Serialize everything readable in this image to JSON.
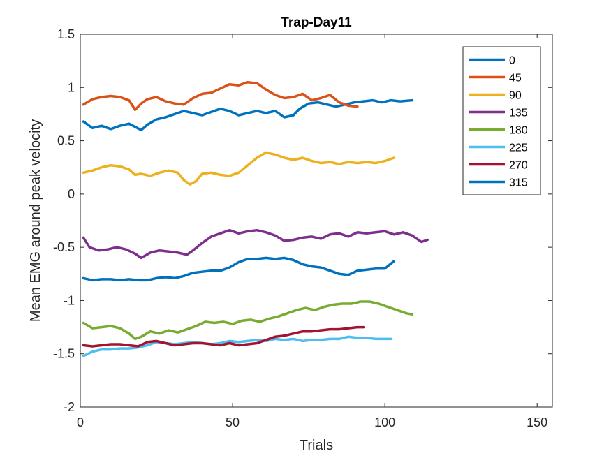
{
  "chart_data": {
    "type": "line",
    "title": "Trap-Day11",
    "xlabel": "Trials",
    "ylabel": "Mean EMG around peak velocity",
    "xlim": [
      0,
      155
    ],
    "ylim": [
      -2,
      1.5
    ],
    "xticks": [
      0,
      50,
      100,
      150
    ],
    "yticks": [
      -2,
      -1.5,
      -1,
      -0.5,
      0,
      0.5,
      1,
      1.5
    ],
    "xtick_labels": [
      "0",
      "50",
      "100",
      "150"
    ],
    "ytick_labels": [
      "-2",
      "-1.5",
      "-1",
      "-0.5",
      "0",
      "0.5",
      "1",
      "1.5"
    ],
    "grid": false,
    "legend_position": "top-right",
    "series": [
      {
        "name": "0",
        "color": "#0072BD",
        "points": [
          [
            1,
            0.68
          ],
          [
            4,
            0.62
          ],
          [
            7,
            0.64
          ],
          [
            10,
            0.61
          ],
          [
            13,
            0.64
          ],
          [
            16,
            0.66
          ],
          [
            18,
            0.63
          ],
          [
            20,
            0.6
          ],
          [
            22,
            0.65
          ],
          [
            25,
            0.7
          ],
          [
            28,
            0.72
          ],
          [
            31,
            0.75
          ],
          [
            34,
            0.78
          ],
          [
            37,
            0.76
          ],
          [
            40,
            0.74
          ],
          [
            43,
            0.77
          ],
          [
            46,
            0.8
          ],
          [
            49,
            0.78
          ],
          [
            52,
            0.74
          ],
          [
            55,
            0.76
          ],
          [
            58,
            0.78
          ],
          [
            61,
            0.76
          ],
          [
            64,
            0.78
          ],
          [
            67,
            0.72
          ],
          [
            70,
            0.74
          ],
          [
            72,
            0.8
          ],
          [
            75,
            0.85
          ],
          [
            78,
            0.86
          ],
          [
            81,
            0.84
          ],
          [
            84,
            0.82
          ],
          [
            87,
            0.84
          ],
          [
            90,
            0.86
          ],
          [
            93,
            0.87
          ],
          [
            96,
            0.88
          ],
          [
            99,
            0.86
          ],
          [
            102,
            0.88
          ],
          [
            105,
            0.87
          ],
          [
            109,
            0.88
          ]
        ]
      },
      {
        "name": "45",
        "color": "#D95319",
        "points": [
          [
            1,
            0.84
          ],
          [
            4,
            0.89
          ],
          [
            7,
            0.91
          ],
          [
            10,
            0.92
          ],
          [
            13,
            0.91
          ],
          [
            16,
            0.88
          ],
          [
            18,
            0.79
          ],
          [
            20,
            0.85
          ],
          [
            22,
            0.89
          ],
          [
            25,
            0.91
          ],
          [
            28,
            0.87
          ],
          [
            31,
            0.85
          ],
          [
            34,
            0.84
          ],
          [
            37,
            0.9
          ],
          [
            40,
            0.94
          ],
          [
            43,
            0.95
          ],
          [
            46,
            0.99
          ],
          [
            49,
            1.03
          ],
          [
            52,
            1.02
          ],
          [
            55,
            1.05
          ],
          [
            58,
            1.04
          ],
          [
            61,
            0.98
          ],
          [
            64,
            0.93
          ],
          [
            67,
            0.9
          ],
          [
            70,
            0.91
          ],
          [
            73,
            0.94
          ],
          [
            76,
            0.88
          ],
          [
            79,
            0.9
          ],
          [
            82,
            0.93
          ],
          [
            85,
            0.86
          ],
          [
            88,
            0.83
          ],
          [
            91,
            0.82
          ]
        ]
      },
      {
        "name": "90",
        "color": "#EDB120",
        "points": [
          [
            1,
            0.2
          ],
          [
            4,
            0.22
          ],
          [
            7,
            0.25
          ],
          [
            10,
            0.27
          ],
          [
            13,
            0.26
          ],
          [
            16,
            0.23
          ],
          [
            18,
            0.18
          ],
          [
            20,
            0.19
          ],
          [
            23,
            0.17
          ],
          [
            26,
            0.2
          ],
          [
            29,
            0.22
          ],
          [
            32,
            0.2
          ],
          [
            34,
            0.13
          ],
          [
            36,
            0.09
          ],
          [
            38,
            0.12
          ],
          [
            40,
            0.19
          ],
          [
            43,
            0.2
          ],
          [
            46,
            0.18
          ],
          [
            49,
            0.17
          ],
          [
            52,
            0.2
          ],
          [
            55,
            0.27
          ],
          [
            58,
            0.34
          ],
          [
            61,
            0.39
          ],
          [
            64,
            0.37
          ],
          [
            67,
            0.34
          ],
          [
            70,
            0.32
          ],
          [
            73,
            0.34
          ],
          [
            76,
            0.31
          ],
          [
            79,
            0.29
          ],
          [
            82,
            0.3
          ],
          [
            85,
            0.28
          ],
          [
            88,
            0.3
          ],
          [
            91,
            0.29
          ],
          [
            94,
            0.3
          ],
          [
            97,
            0.29
          ],
          [
            100,
            0.31
          ],
          [
            103,
            0.34
          ]
        ]
      },
      {
        "name": "135",
        "color": "#7E2F8E",
        "points": [
          [
            1,
            -0.41
          ],
          [
            3,
            -0.5
          ],
          [
            6,
            -0.53
          ],
          [
            9,
            -0.52
          ],
          [
            12,
            -0.5
          ],
          [
            15,
            -0.52
          ],
          [
            18,
            -0.56
          ],
          [
            20,
            -0.6
          ],
          [
            23,
            -0.55
          ],
          [
            26,
            -0.53
          ],
          [
            29,
            -0.54
          ],
          [
            32,
            -0.55
          ],
          [
            35,
            -0.57
          ],
          [
            37,
            -0.53
          ],
          [
            40,
            -0.46
          ],
          [
            43,
            -0.4
          ],
          [
            46,
            -0.37
          ],
          [
            49,
            -0.34
          ],
          [
            52,
            -0.37
          ],
          [
            55,
            -0.35
          ],
          [
            58,
            -0.34
          ],
          [
            61,
            -0.36
          ],
          [
            64,
            -0.39
          ],
          [
            67,
            -0.44
          ],
          [
            70,
            -0.43
          ],
          [
            73,
            -0.41
          ],
          [
            76,
            -0.4
          ],
          [
            79,
            -0.42
          ],
          [
            82,
            -0.38
          ],
          [
            85,
            -0.37
          ],
          [
            88,
            -0.4
          ],
          [
            91,
            -0.36
          ],
          [
            94,
            -0.37
          ],
          [
            97,
            -0.36
          ],
          [
            100,
            -0.35
          ],
          [
            103,
            -0.38
          ],
          [
            106,
            -0.36
          ],
          [
            109,
            -0.39
          ],
          [
            112,
            -0.45
          ],
          [
            114,
            -0.43
          ]
        ]
      },
      {
        "name": "180",
        "color": "#77AC30",
        "points": [
          [
            1,
            -1.21
          ],
          [
            4,
            -1.26
          ],
          [
            7,
            -1.25
          ],
          [
            10,
            -1.24
          ],
          [
            13,
            -1.26
          ],
          [
            16,
            -1.31
          ],
          [
            18,
            -1.36
          ],
          [
            20,
            -1.34
          ],
          [
            23,
            -1.29
          ],
          [
            26,
            -1.31
          ],
          [
            29,
            -1.28
          ],
          [
            32,
            -1.3
          ],
          [
            35,
            -1.27
          ],
          [
            38,
            -1.24
          ],
          [
            41,
            -1.2
          ],
          [
            44,
            -1.21
          ],
          [
            47,
            -1.2
          ],
          [
            50,
            -1.22
          ],
          [
            53,
            -1.19
          ],
          [
            56,
            -1.18
          ],
          [
            59,
            -1.2
          ],
          [
            62,
            -1.17
          ],
          [
            65,
            -1.15
          ],
          [
            68,
            -1.12
          ],
          [
            71,
            -1.09
          ],
          [
            74,
            -1.07
          ],
          [
            77,
            -1.09
          ],
          [
            80,
            -1.06
          ],
          [
            83,
            -1.04
          ],
          [
            86,
            -1.03
          ],
          [
            89,
            -1.03
          ],
          [
            92,
            -1.01
          ],
          [
            95,
            -1.01
          ],
          [
            98,
            -1.03
          ],
          [
            101,
            -1.06
          ],
          [
            104,
            -1.09
          ],
          [
            107,
            -1.12
          ],
          [
            109,
            -1.13
          ]
        ]
      },
      {
        "name": "225",
        "color": "#4DBEEE",
        "points": [
          [
            1,
            -1.52
          ],
          [
            4,
            -1.48
          ],
          [
            7,
            -1.46
          ],
          [
            10,
            -1.46
          ],
          [
            13,
            -1.45
          ],
          [
            16,
            -1.45
          ],
          [
            19,
            -1.44
          ],
          [
            22,
            -1.42
          ],
          [
            25,
            -1.39
          ],
          [
            28,
            -1.4
          ],
          [
            31,
            -1.41
          ],
          [
            34,
            -1.4
          ],
          [
            37,
            -1.39
          ],
          [
            40,
            -1.4
          ],
          [
            43,
            -1.41
          ],
          [
            46,
            -1.4
          ],
          [
            49,
            -1.38
          ],
          [
            52,
            -1.39
          ],
          [
            55,
            -1.38
          ],
          [
            58,
            -1.37
          ],
          [
            61,
            -1.38
          ],
          [
            64,
            -1.36
          ],
          [
            67,
            -1.37
          ],
          [
            70,
            -1.36
          ],
          [
            73,
            -1.38
          ],
          [
            76,
            -1.37
          ],
          [
            79,
            -1.37
          ],
          [
            82,
            -1.36
          ],
          [
            85,
            -1.36
          ],
          [
            88,
            -1.34
          ],
          [
            91,
            -1.35
          ],
          [
            94,
            -1.35
          ],
          [
            97,
            -1.36
          ],
          [
            100,
            -1.36
          ],
          [
            102,
            -1.36
          ]
        ]
      },
      {
        "name": "270",
        "color": "#A2142F",
        "points": [
          [
            1,
            -1.42
          ],
          [
            4,
            -1.43
          ],
          [
            7,
            -1.42
          ],
          [
            10,
            -1.41
          ],
          [
            13,
            -1.41
          ],
          [
            16,
            -1.42
          ],
          [
            19,
            -1.43
          ],
          [
            22,
            -1.39
          ],
          [
            25,
            -1.38
          ],
          [
            28,
            -1.4
          ],
          [
            31,
            -1.42
          ],
          [
            34,
            -1.41
          ],
          [
            37,
            -1.4
          ],
          [
            40,
            -1.4
          ],
          [
            43,
            -1.41
          ],
          [
            46,
            -1.42
          ],
          [
            49,
            -1.4
          ],
          [
            52,
            -1.42
          ],
          [
            55,
            -1.41
          ],
          [
            58,
            -1.4
          ],
          [
            61,
            -1.37
          ],
          [
            64,
            -1.34
          ],
          [
            67,
            -1.33
          ],
          [
            70,
            -1.31
          ],
          [
            73,
            -1.29
          ],
          [
            76,
            -1.29
          ],
          [
            79,
            -1.28
          ],
          [
            82,
            -1.27
          ],
          [
            85,
            -1.27
          ],
          [
            88,
            -1.26
          ],
          [
            91,
            -1.25
          ],
          [
            93,
            -1.25
          ]
        ]
      },
      {
        "name": "315",
        "color": "#0072BD",
        "points": [
          [
            1,
            -0.79
          ],
          [
            4,
            -0.81
          ],
          [
            7,
            -0.8
          ],
          [
            10,
            -0.8
          ],
          [
            13,
            -0.81
          ],
          [
            16,
            -0.8
          ],
          [
            19,
            -0.81
          ],
          [
            22,
            -0.81
          ],
          [
            25,
            -0.79
          ],
          [
            28,
            -0.78
          ],
          [
            31,
            -0.79
          ],
          [
            34,
            -0.77
          ],
          [
            37,
            -0.74
          ],
          [
            40,
            -0.73
          ],
          [
            43,
            -0.72
          ],
          [
            46,
            -0.72
          ],
          [
            49,
            -0.69
          ],
          [
            52,
            -0.64
          ],
          [
            55,
            -0.61
          ],
          [
            58,
            -0.61
          ],
          [
            61,
            -0.6
          ],
          [
            64,
            -0.61
          ],
          [
            67,
            -0.6
          ],
          [
            70,
            -0.62
          ],
          [
            73,
            -0.66
          ],
          [
            76,
            -0.68
          ],
          [
            79,
            -0.69
          ],
          [
            82,
            -0.72
          ],
          [
            85,
            -0.75
          ],
          [
            88,
            -0.76
          ],
          [
            91,
            -0.72
          ],
          [
            94,
            -0.71
          ],
          [
            97,
            -0.7
          ],
          [
            100,
            -0.7
          ],
          [
            103,
            -0.63
          ]
        ]
      }
    ]
  }
}
